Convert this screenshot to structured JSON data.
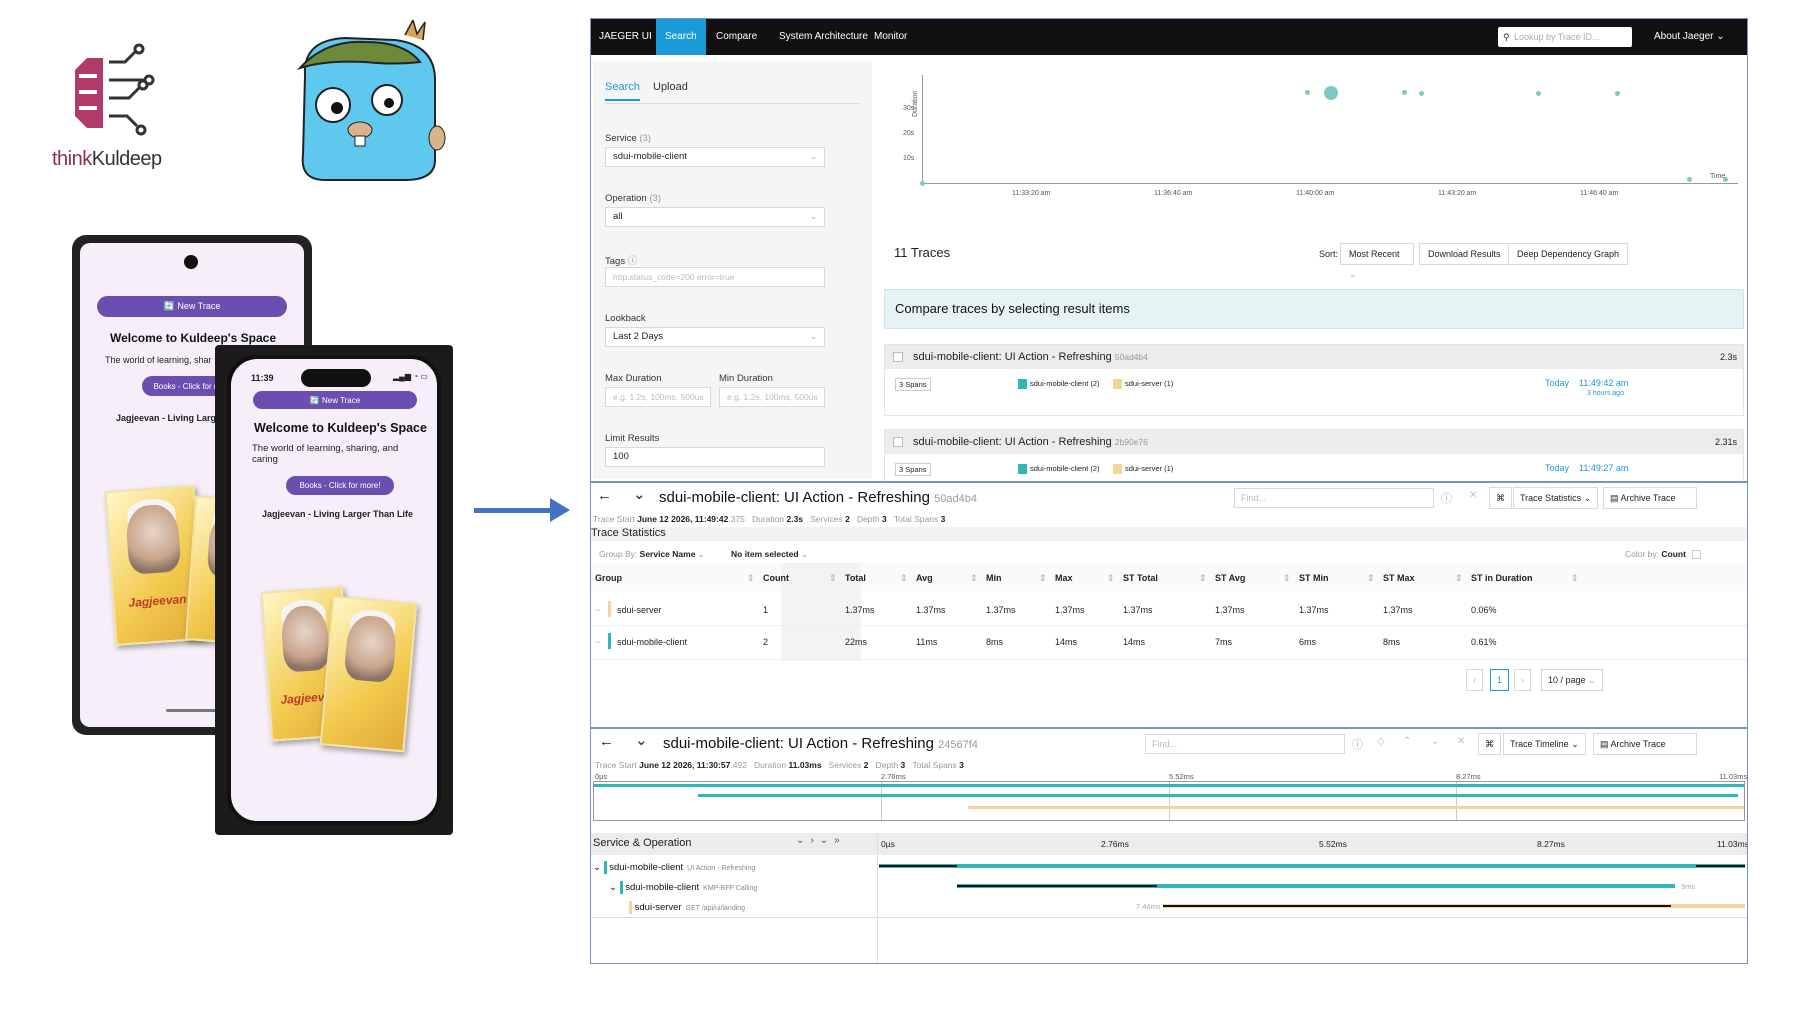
{
  "brand": {
    "logo_prefix": "think",
    "logo_suffix": "Kuldeep"
  },
  "phone_android": {
    "button": "🔄 New Trace",
    "title": "Welcome to Kuldeep's Space",
    "subtitle": "The world of learning, shar",
    "books_button": "Books - Click for m",
    "book_heading": "Jagjeevan - Living Larg",
    "book_cover_title": "Jagjeevan"
  },
  "phone_ios": {
    "time": "11:39",
    "button": "🔄 New Trace",
    "title": "Welcome to Kuldeep's Space",
    "subtitle": "The world of learning, sharing, and caring",
    "books_button": "Books - Click for more!",
    "book_heading": "Jagjeevan - Living Larger Than Life",
    "book_cover_title": "Jagjeevan"
  },
  "nav": {
    "brand": "JAEGER UI",
    "items": [
      "Search",
      "Compare",
      "System Architecture",
      "Monitor"
    ],
    "lookup_placeholder": "Lookup by Trace ID...",
    "about": "About Jaeger"
  },
  "search": {
    "tabs": [
      "Search",
      "Upload"
    ],
    "service_label": "Service",
    "service_count": "(3)",
    "service_value": "sdui-mobile-client",
    "operation_label": "Operation",
    "operation_count": "(3)",
    "operation_value": "all",
    "tags_label": "Tags",
    "tags_placeholder": "http.status_code=200 error=true",
    "lookback_label": "Lookback",
    "lookback_value": "Last 2 Days",
    "max_duration_label": "Max Duration",
    "min_duration_label": "Min Duration",
    "duration_placeholder": "e.g. 1.2s, 100ms, 500us",
    "limit_label": "Limit Results",
    "limit_value": "100"
  },
  "scatter": {
    "y_label": "Duration",
    "y_ticks": [
      "30s",
      "20s",
      "10s"
    ],
    "x_ticks": [
      "11:33:20 am",
      "11:36:40 am",
      "11:40:00 am",
      "11:43:20 am",
      "11:46:40 am"
    ],
    "x_label": "Time"
  },
  "results": {
    "count": "11 Traces",
    "sort_label": "Sort:",
    "sort_value": "Most Recent",
    "download": "Download Results",
    "deep_graph": "Deep Dependency Graph",
    "compare_banner": "Compare traces by selecting result items",
    "traces": [
      {
        "title": "sdui-mobile-client: UI Action - Refreshing",
        "id": "50ad4b4",
        "duration": "2.3s",
        "spans": "3 Spans",
        "svc1": "sdui-mobile-client (2)",
        "svc2": "sdui-server (1)",
        "day": "Today",
        "time": "11:49:42 am",
        "ago": "3 hours ago"
      },
      {
        "title": "sdui-mobile-client: UI Action - Refreshing",
        "id": "2b90e76",
        "duration": "2.31s",
        "spans": "3 Spans",
        "svc1": "sdui-mobile-client (2)",
        "svc2": "sdui-server (1)",
        "day": "Today",
        "time": "11:49:27 am",
        "ago": ""
      }
    ]
  },
  "stats_panel": {
    "title": "sdui-mobile-client: UI Action - Refreshing",
    "id": "50ad4b4",
    "find_placeholder": "Find...",
    "view_select": "Trace Statistics",
    "archive": "Archive Trace",
    "trace_start_label": "Trace Start",
    "trace_start": "June 12 2026, 11:49:42",
    "trace_start_ms": ".375",
    "duration_label": "Duration",
    "duration": "2.3s",
    "services_label": "Services",
    "services": "2",
    "depth_label": "Depth",
    "depth": "3",
    "total_spans_label": "Total Spans",
    "total_spans": "3",
    "section": "Trace Statistics",
    "group_by_label": "Group By:",
    "group_by": "Service Name",
    "no_item": "No item selected",
    "color_by_label": "Color by:",
    "color_by": "Count",
    "columns": [
      "Group",
      "Count",
      "Total",
      "Avg",
      "Min",
      "Max",
      "ST Total",
      "ST Avg",
      "ST Min",
      "ST Max",
      "ST in Duration"
    ],
    "rows": [
      {
        "name": "sdui-server",
        "color": "#f5d49c",
        "values": [
          "1",
          "1.37ms",
          "1.37ms",
          "1.37ms",
          "1.37ms",
          "1.37ms",
          "1.37ms",
          "1.37ms",
          "1.37ms",
          "0.06%"
        ]
      },
      {
        "name": "sdui-mobile-client",
        "color": "#2fb6b6",
        "values": [
          "2",
          "22ms",
          "11ms",
          "8ms",
          "14ms",
          "14ms",
          "7ms",
          "6ms",
          "8ms",
          "0.61%"
        ]
      }
    ],
    "page": "1",
    "page_size": "10 / page"
  },
  "timeline_panel": {
    "title": "sdui-mobile-client: UI Action - Refreshing",
    "id": "24567f4",
    "find_placeholder": "Find...",
    "view_select": "Trace Timeline",
    "archive": "Archive Trace",
    "trace_start_label": "Trace Start",
    "trace_start": "June 12 2026, 11:30:57",
    "trace_start_ms": ".492",
    "duration_label": "Duration",
    "duration": "11.03ms",
    "services_label": "Services",
    "services": "2",
    "depth_label": "Depth",
    "depth": "3",
    "total_spans_label": "Total Spans",
    "total_spans": "3",
    "axis_ticks": [
      "0µs",
      "2.76ms",
      "5.52ms",
      "8.27ms",
      "11.03ms"
    ],
    "column_header": "Service & Operation",
    "spans": [
      {
        "service": "sdui-mobile-client",
        "op": "UI Action - Refreshing",
        "label": ""
      },
      {
        "service": "sdui-mobile-client",
        "op": "KMP-BFF Calling",
        "label": "9ms"
      },
      {
        "service": "sdui-server",
        "op": "GET /api/ui/landing",
        "label": "7.44ms"
      }
    ]
  },
  "colors": {
    "accent": "#1a9ad6",
    "mobile": "#2fb6b6",
    "server": "#f5d49c",
    "arrow": "#4472c4",
    "brand": "#8a2d57"
  }
}
